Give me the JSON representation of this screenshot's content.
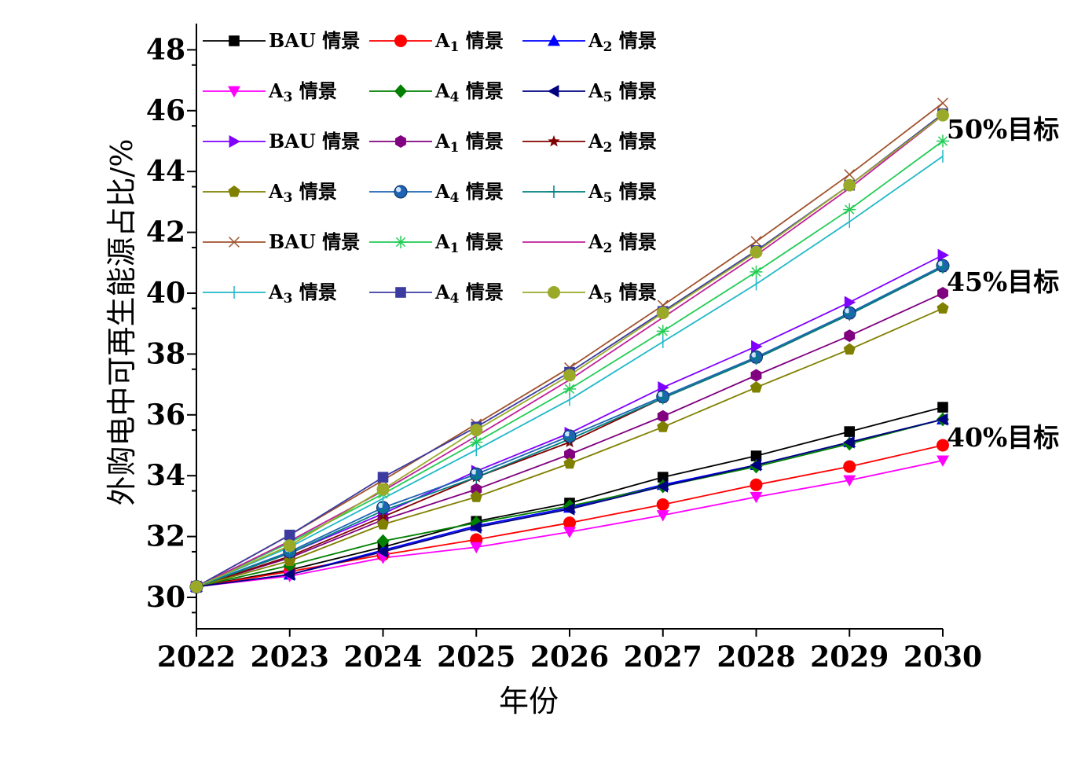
{
  "chart_data": {
    "type": "line",
    "xlabel": "年份",
    "ylabel": "外购电中可再生能源占比/%",
    "x": [
      2022,
      2023,
      2024,
      2025,
      2026,
      2027,
      2028,
      2029,
      2030
    ],
    "xlim": [
      2022,
      2030
    ],
    "ylim": [
      29,
      48
    ],
    "yticks": [
      30,
      32,
      34,
      36,
      38,
      40,
      42,
      44,
      46,
      48
    ],
    "grid": false,
    "legend_position": "top-left, 6 rows x 3 columns",
    "annotations": [
      "40%目标",
      "45%目标",
      "50%目标"
    ],
    "series": [
      {
        "name": "BAU 情景",
        "sub": "",
        "group": "40",
        "color": "#000000",
        "marker": "square",
        "values": [
          30.35,
          30.9,
          31.65,
          32.5,
          33.1,
          33.95,
          34.65,
          35.45,
          36.25
        ]
      },
      {
        "name": "A 情景",
        "sub": "1",
        "group": "40",
        "color": "#ff0000",
        "marker": "circle",
        "values": [
          30.35,
          30.85,
          31.4,
          31.9,
          32.45,
          33.05,
          33.7,
          34.3,
          35.0
        ]
      },
      {
        "name": "A 情景",
        "sub": "2",
        "group": "40",
        "color": "#0000ff",
        "marker": "triangle-up",
        "values": [
          30.35,
          30.75,
          31.55,
          32.35,
          32.95,
          33.7,
          34.35,
          35.1,
          35.85
        ]
      },
      {
        "name": "A 情景",
        "sub": "3",
        "group": "40",
        "color": "#ff00ff",
        "marker": "triangle-down",
        "values": [
          30.35,
          30.7,
          31.3,
          31.65,
          32.15,
          32.7,
          33.3,
          33.85,
          34.5
        ]
      },
      {
        "name": "A 情景",
        "sub": "4",
        "group": "40",
        "color": "#008000",
        "marker": "diamond",
        "values": [
          30.35,
          31.05,
          31.85,
          32.45,
          33.0,
          33.65,
          34.3,
          35.05,
          35.85
        ]
      },
      {
        "name": "A 情景",
        "sub": "5",
        "group": "40",
        "color": "#000080",
        "marker": "triangle-left",
        "values": [
          30.35,
          30.75,
          31.5,
          32.3,
          32.9,
          33.65,
          34.35,
          35.1,
          35.85
        ]
      },
      {
        "name": "BAU 情景",
        "sub": "",
        "group": "45",
        "color": "#8000ff",
        "marker": "triangle-right",
        "values": [
          30.35,
          31.45,
          32.75,
          34.15,
          35.4,
          36.9,
          38.25,
          39.7,
          41.25
        ]
      },
      {
        "name": "A 情景",
        "sub": "1",
        "group": "45",
        "color": "#800080",
        "marker": "hexagon",
        "values": [
          30.35,
          31.3,
          32.55,
          33.55,
          34.7,
          35.95,
          37.3,
          38.6,
          40.0
        ]
      },
      {
        "name": "A 情景",
        "sub": "2",
        "group": "45",
        "color": "#800000",
        "marker": "star",
        "values": [
          30.35,
          31.35,
          32.65,
          33.95,
          35.1,
          36.55,
          37.85,
          39.3,
          40.85
        ]
      },
      {
        "name": "A 情景",
        "sub": "3",
        "group": "45",
        "color": "#808000",
        "marker": "pentagon",
        "values": [
          30.35,
          31.2,
          32.4,
          33.3,
          34.4,
          35.6,
          36.9,
          38.15,
          39.5
        ]
      },
      {
        "name": "A 情景",
        "sub": "4",
        "group": "45",
        "color": "#1e64b4",
        "marker": "sphere",
        "values": [
          30.35,
          31.5,
          32.95,
          34.05,
          35.3,
          36.6,
          37.9,
          39.35,
          40.9
        ]
      },
      {
        "name": "A 情景",
        "sub": "5",
        "group": "45",
        "color": "#008080",
        "marker": "plus",
        "values": [
          30.35,
          31.45,
          32.85,
          33.95,
          35.2,
          36.55,
          37.85,
          39.3,
          40.85
        ]
      },
      {
        "name": "BAU 情景",
        "sub": "",
        "group": "50",
        "color": "#a0522d",
        "marker": "cross",
        "values": [
          30.35,
          32.05,
          33.85,
          35.7,
          37.55,
          39.6,
          41.7,
          43.9,
          46.25
        ]
      },
      {
        "name": "A 情景",
        "sub": "1",
        "group": "50",
        "color": "#22cc55",
        "marker": "asterisk",
        "values": [
          30.35,
          31.8,
          33.4,
          35.1,
          36.85,
          38.75,
          40.7,
          42.75,
          45.0
        ]
      },
      {
        "name": "A 情景",
        "sub": "2",
        "group": "50",
        "color": "#c0209a",
        "marker": "none",
        "values": [
          30.35,
          31.85,
          33.5,
          35.3,
          37.15,
          39.2,
          41.25,
          43.45,
          45.85
        ]
      },
      {
        "name": "A 情景",
        "sub": "3",
        "group": "50",
        "color": "#20b8c8",
        "marker": "vbar",
        "values": [
          30.35,
          31.65,
          33.25,
          34.85,
          36.5,
          38.4,
          40.3,
          42.35,
          44.5
        ]
      },
      {
        "name": "A 情景",
        "sub": "4",
        "group": "50",
        "color": "#3c3ca0",
        "marker": "square",
        "values": [
          30.35,
          32.05,
          33.95,
          35.6,
          37.4,
          39.4,
          41.4,
          43.55,
          45.9
        ]
      },
      {
        "name": "A 情景",
        "sub": "5",
        "group": "50",
        "color": "#9aaa28",
        "marker": "circle",
        "values": [
          30.35,
          31.7,
          33.55,
          35.5,
          37.3,
          39.35,
          41.35,
          43.55,
          45.85
        ]
      }
    ]
  }
}
